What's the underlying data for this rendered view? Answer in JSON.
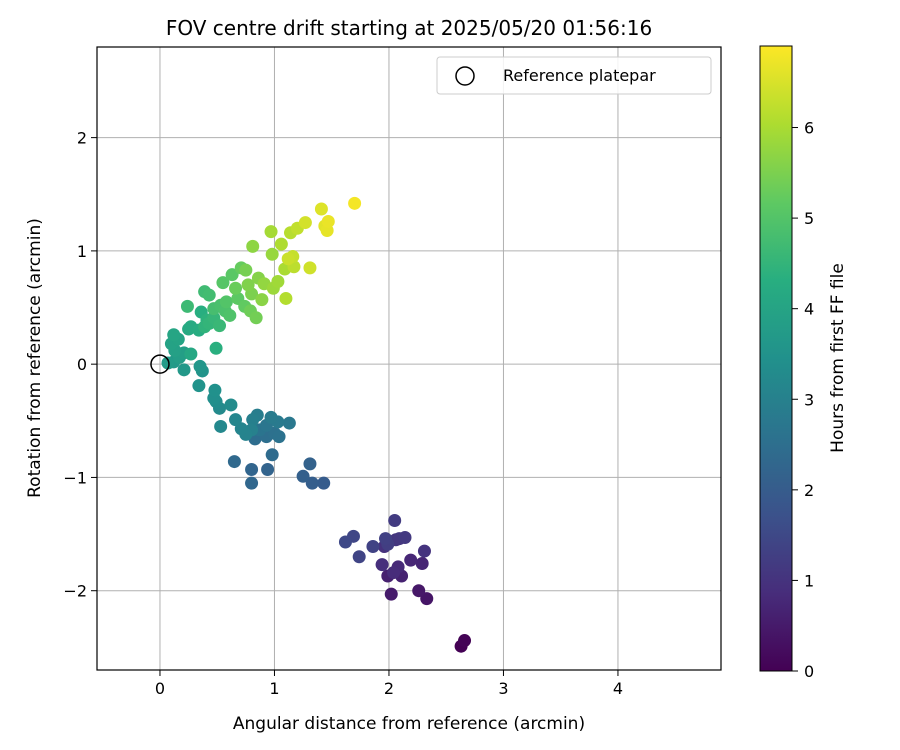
{
  "chart_data": {
    "type": "scatter",
    "title": "FOV centre drift starting at 2025/05/20 01:56:16",
    "xlabel": "Angular distance from reference (arcmin)",
    "ylabel": "Rotation from reference (arcmin)",
    "xlim": [
      -0.55,
      4.9
    ],
    "ylim": [
      -2.7,
      2.8
    ],
    "x_ticks": [
      0,
      1,
      2,
      3,
      4
    ],
    "y_ticks": [
      -2,
      -1,
      0,
      1,
      2
    ],
    "x_tick_labels": [
      "0",
      "1",
      "2",
      "3",
      "4"
    ],
    "y_tick_labels": [
      "−2",
      "−1",
      "0",
      "1",
      "2"
    ],
    "grid": true,
    "legend": {
      "position": "top-right",
      "entries": [
        "Reference platepar"
      ]
    },
    "reference_point": {
      "x": 0,
      "y": 0
    },
    "colorbar": {
      "label": "Hours from first FF file",
      "range": [
        0,
        6.9
      ],
      "ticks": [
        0,
        1,
        2,
        3,
        4,
        5,
        6
      ],
      "tick_labels": [
        "0",
        "1",
        "2",
        "3",
        "4",
        "5",
        "6"
      ],
      "colormap": "viridis"
    },
    "points": [
      [
        2.63,
        -2.49,
        0.0
      ],
      [
        2.66,
        -2.44,
        0.05
      ],
      [
        2.33,
        -2.07,
        0.4
      ],
      [
        2.26,
        -2.0,
        0.45
      ],
      [
        2.02,
        -2.03,
        0.5
      ],
      [
        1.99,
        -1.87,
        0.6
      ],
      [
        2.11,
        -1.87,
        0.65
      ],
      [
        2.29,
        -1.76,
        0.7
      ],
      [
        2.19,
        -1.73,
        0.75
      ],
      [
        2.08,
        -1.79,
        0.8
      ],
      [
        2.04,
        -1.84,
        0.85
      ],
      [
        1.94,
        -1.77,
        0.9
      ],
      [
        1.96,
        -1.61,
        0.95
      ],
      [
        2.31,
        -1.65,
        1.0
      ],
      [
        2.06,
        -1.55,
        1.05
      ],
      [
        2.09,
        -1.54,
        1.1
      ],
      [
        2.14,
        -1.53,
        1.15
      ],
      [
        2.05,
        -1.38,
        1.2
      ],
      [
        1.99,
        -1.59,
        1.25
      ],
      [
        1.97,
        -1.54,
        1.3
      ],
      [
        1.86,
        -1.61,
        1.35
      ],
      [
        1.74,
        -1.7,
        1.4
      ],
      [
        1.69,
        -1.52,
        1.45
      ],
      [
        1.62,
        -1.57,
        1.5
      ],
      [
        1.43,
        -1.05,
        2.0
      ],
      [
        1.33,
        -1.05,
        2.05
      ],
      [
        1.25,
        -0.99,
        2.1
      ],
      [
        1.31,
        -0.88,
        2.15
      ],
      [
        0.94,
        -0.93,
        2.2
      ],
      [
        0.8,
        -0.93,
        2.25
      ],
      [
        0.8,
        -1.05,
        2.3
      ],
      [
        0.65,
        -0.86,
        2.35
      ],
      [
        0.98,
        -0.8,
        2.4
      ],
      [
        0.83,
        -0.66,
        2.45
      ],
      [
        0.93,
        -0.64,
        2.5
      ],
      [
        1.0,
        -0.61,
        2.55
      ],
      [
        1.04,
        -0.64,
        2.6
      ],
      [
        0.87,
        -0.58,
        2.65
      ],
      [
        0.93,
        -0.54,
        2.7
      ],
      [
        1.13,
        -0.52,
        2.75
      ],
      [
        1.03,
        -0.51,
        2.8
      ],
      [
        0.97,
        -0.47,
        2.85
      ],
      [
        0.85,
        -0.45,
        2.9
      ],
      [
        0.81,
        -0.49,
        2.95
      ],
      [
        0.8,
        -0.58,
        3.0
      ],
      [
        0.75,
        -0.62,
        3.05
      ],
      [
        0.71,
        -0.57,
        3.1
      ],
      [
        0.66,
        -0.49,
        3.15
      ],
      [
        0.53,
        -0.55,
        3.2
      ],
      [
        0.52,
        -0.39,
        3.25
      ],
      [
        0.62,
        -0.36,
        3.3
      ],
      [
        0.49,
        -0.33,
        3.35
      ],
      [
        0.47,
        -0.3,
        3.4
      ],
      [
        0.48,
        -0.23,
        3.45
      ],
      [
        0.34,
        -0.19,
        3.5
      ],
      [
        0.37,
        -0.06,
        3.55
      ],
      [
        0.35,
        -0.02,
        3.6
      ],
      [
        0.21,
        -0.05,
        3.65
      ],
      [
        0.12,
        0.02,
        3.7
      ],
      [
        0.07,
        0.01,
        3.75
      ],
      [
        0.17,
        0.06,
        3.8
      ],
      [
        0.21,
        0.1,
        3.85
      ],
      [
        0.13,
        0.12,
        3.9
      ],
      [
        0.1,
        0.18,
        3.95
      ],
      [
        0.16,
        0.22,
        4.0
      ],
      [
        0.12,
        0.26,
        4.05
      ],
      [
        0.27,
        0.09,
        4.1
      ],
      [
        0.25,
        0.31,
        4.15
      ],
      [
        0.27,
        0.33,
        4.2
      ],
      [
        0.34,
        0.3,
        4.25
      ],
      [
        0.36,
        0.46,
        4.3
      ],
      [
        0.49,
        0.14,
        4.35
      ],
      [
        0.41,
        0.39,
        4.4
      ],
      [
        0.39,
        0.33,
        4.45
      ],
      [
        0.43,
        0.36,
        4.5
      ],
      [
        0.47,
        0.41,
        4.55
      ],
      [
        0.52,
        0.34,
        4.6
      ],
      [
        0.24,
        0.51,
        4.65
      ],
      [
        0.39,
        0.64,
        4.7
      ],
      [
        0.43,
        0.61,
        4.75
      ],
      [
        0.47,
        0.49,
        4.8
      ],
      [
        0.53,
        0.52,
        4.85
      ],
      [
        0.57,
        0.47,
        4.9
      ],
      [
        0.61,
        0.43,
        4.95
      ],
      [
        0.58,
        0.55,
        5.0
      ],
      [
        0.55,
        0.72,
        5.05
      ],
      [
        0.63,
        0.79,
        5.1
      ],
      [
        0.68,
        0.58,
        5.15
      ],
      [
        0.74,
        0.51,
        5.2
      ],
      [
        0.71,
        0.85,
        5.25
      ],
      [
        0.66,
        0.67,
        5.3
      ],
      [
        0.79,
        0.47,
        5.35
      ],
      [
        0.84,
        0.41,
        5.4
      ],
      [
        0.75,
        0.83,
        5.45
      ],
      [
        0.8,
        0.62,
        5.5
      ],
      [
        0.77,
        0.7,
        5.55
      ],
      [
        0.86,
        0.76,
        5.6
      ],
      [
        0.89,
        0.57,
        5.65
      ],
      [
        0.81,
        1.04,
        5.7
      ],
      [
        0.91,
        0.71,
        5.75
      ],
      [
        0.98,
        0.97,
        5.8
      ],
      [
        0.99,
        0.67,
        5.85
      ],
      [
        1.03,
        0.73,
        5.9
      ],
      [
        0.97,
        1.17,
        5.95
      ],
      [
        1.09,
        0.84,
        6.0
      ],
      [
        1.06,
        1.06,
        6.05
      ],
      [
        1.1,
        0.58,
        6.1
      ],
      [
        1.14,
        1.16,
        6.15
      ],
      [
        1.17,
        0.86,
        6.2
      ],
      [
        1.2,
        1.2,
        6.25
      ],
      [
        1.16,
        0.95,
        6.3
      ],
      [
        1.12,
        0.93,
        6.35
      ],
      [
        1.31,
        0.85,
        6.4
      ],
      [
        1.27,
        1.25,
        6.45
      ],
      [
        1.41,
        1.37,
        6.55
      ],
      [
        1.44,
        1.22,
        6.6
      ],
      [
        1.46,
        1.18,
        6.65
      ],
      [
        1.47,
        1.26,
        6.7
      ],
      [
        1.7,
        1.42,
        6.8
      ]
    ]
  }
}
